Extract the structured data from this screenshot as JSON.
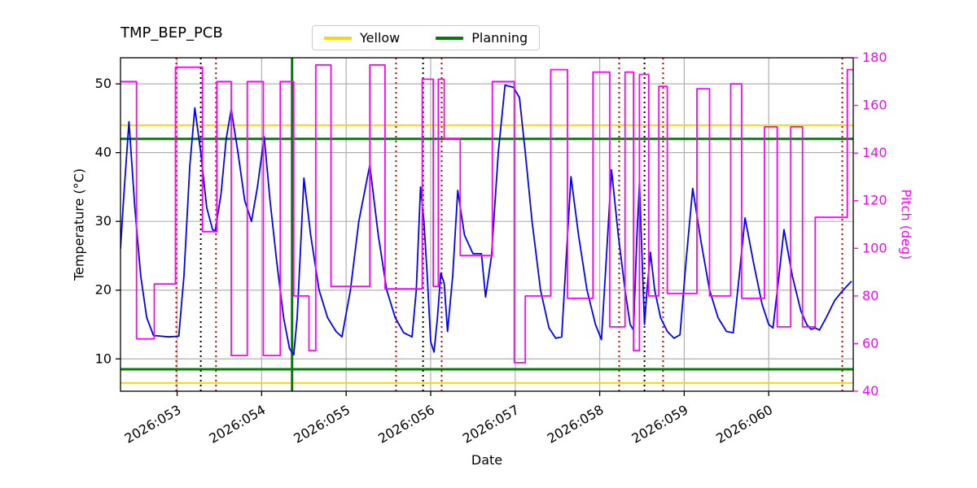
{
  "chart_data": {
    "type": "line",
    "title": "TMP_BEP_PCB",
    "xlabel": "Date",
    "grid": true,
    "x_axis": {
      "tick_labels": [
        "2026:053",
        "2026:054",
        "2026:055",
        "2026:056",
        "2026:057",
        "2026:058",
        "2026:059",
        "2026:060"
      ],
      "tick_values": [
        53,
        54,
        55,
        56,
        57,
        58,
        59,
        60
      ],
      "range": [
        52.33,
        61.0
      ]
    },
    "y_left": {
      "label": "Temperature (°C)",
      "ticks": [
        10,
        20,
        30,
        40,
        50
      ],
      "range": [
        5.3,
        53.8
      ],
      "color": "#000000"
    },
    "y_right": {
      "label": "Pitch (deg)",
      "ticks": [
        40,
        60,
        80,
        100,
        120,
        140,
        160,
        180
      ],
      "range": [
        40,
        180
      ],
      "color": "#ff00ff"
    },
    "legend": {
      "position": "top-center",
      "items": [
        {
          "label": "Yellow",
          "color": "#ffd700"
        },
        {
          "label": "Planning",
          "color": "#008000"
        }
      ]
    },
    "series": [
      {
        "name": "Temperature",
        "color": "#0000ff",
        "axis": "left",
        "line_width": 1.8,
        "x": [
          52.33,
          52.37,
          52.43,
          52.5,
          52.57,
          52.64,
          52.72,
          52.9,
          53.02,
          53.08,
          53.15,
          53.21,
          53.28,
          53.35,
          53.42,
          53.45,
          53.52,
          53.58,
          53.64,
          53.72,
          53.8,
          53.88,
          53.95,
          54.03,
          54.1,
          54.18,
          54.26,
          54.33,
          54.38,
          54.42,
          54.46,
          54.5,
          54.58,
          54.68,
          54.78,
          54.88,
          54.95,
          55.05,
          55.15,
          55.28,
          55.38,
          55.48,
          55.58,
          55.68,
          55.78,
          55.83,
          55.88,
          55.92,
          55.96,
          56.0,
          56.04,
          56.08,
          56.12,
          56.16,
          56.2,
          56.26,
          56.32,
          56.4,
          56.5,
          56.6,
          56.65,
          56.72,
          56.8,
          56.88,
          56.98,
          57.05,
          57.12,
          57.2,
          57.3,
          57.4,
          57.48,
          57.55,
          57.6,
          57.66,
          57.75,
          57.85,
          57.95,
          58.02,
          58.08,
          58.14,
          58.22,
          58.3,
          58.36,
          58.4,
          58.44,
          58.47,
          58.5,
          58.53,
          58.56,
          58.6,
          58.65,
          58.72,
          58.8,
          58.88,
          58.95,
          59.02,
          59.1,
          59.2,
          59.3,
          59.4,
          59.5,
          59.58,
          59.65,
          59.72,
          59.82,
          59.92,
          60.0,
          60.05,
          60.12,
          60.18,
          60.28,
          60.38,
          60.45,
          60.5,
          60.55,
          60.6,
          60.68,
          60.78,
          60.88,
          60.98
        ],
        "y": [
          26,
          34,
          44.5,
          32,
          22,
          16,
          13.4,
          13.2,
          13.3,
          22,
          38,
          46.5,
          40,
          32,
          28.8,
          28.6,
          34,
          42,
          46.3,
          40,
          33,
          30,
          35,
          42.3,
          33,
          24,
          16,
          11.5,
          10.6,
          16,
          26,
          36.3,
          28,
          20,
          16,
          14,
          13.2,
          20,
          30,
          38.2,
          28,
          20,
          16,
          13.8,
          13.2,
          20,
          35,
          30,
          22,
          12.5,
          11,
          16,
          22.5,
          21,
          14,
          22,
          34.5,
          28,
          25.3,
          25.3,
          19,
          25,
          40,
          49.8,
          49.5,
          48,
          40,
          30,
          20,
          14.5,
          13,
          13.2,
          24,
          36.5,
          28,
          20,
          15,
          12.8,
          25,
          37.5,
          28,
          20,
          15,
          14.2,
          28,
          35.7,
          25,
          15,
          20,
          25.5,
          20,
          16,
          14,
          13,
          13.5,
          24,
          34.8,
          27,
          20,
          16,
          14,
          13.8,
          22,
          30.5,
          24,
          18,
          15,
          14.5,
          22,
          28.8,
          22,
          17,
          15,
          14.3,
          14.5,
          14.2,
          16,
          18.5,
          20,
          21.3
        ]
      },
      {
        "name": "Pitch",
        "color": "#ff00ff",
        "axis": "right",
        "line_width": 1.8,
        "step": true,
        "steps": [
          [
            52.33,
            52.52,
            170
          ],
          [
            52.52,
            52.73,
            62
          ],
          [
            52.73,
            52.98,
            85
          ],
          [
            52.98,
            53.3,
            176
          ],
          [
            53.3,
            53.47,
            107
          ],
          [
            53.47,
            53.64,
            170
          ],
          [
            53.64,
            53.83,
            55
          ],
          [
            53.83,
            54.02,
            170
          ],
          [
            54.02,
            54.22,
            55
          ],
          [
            54.22,
            54.38,
            170
          ],
          [
            54.38,
            54.56,
            80
          ],
          [
            54.56,
            54.64,
            57
          ],
          [
            54.64,
            54.82,
            177
          ],
          [
            54.82,
            55.28,
            84
          ],
          [
            55.28,
            55.46,
            177
          ],
          [
            55.46,
            55.9,
            83
          ],
          [
            55.9,
            56.03,
            171
          ],
          [
            56.03,
            56.09,
            84
          ],
          [
            56.09,
            56.16,
            171
          ],
          [
            56.16,
            56.35,
            146
          ],
          [
            56.35,
            56.73,
            97
          ],
          [
            56.73,
            56.99,
            170
          ],
          [
            56.99,
            57.12,
            52
          ],
          [
            57.12,
            57.42,
            80
          ],
          [
            57.42,
            57.62,
            175
          ],
          [
            57.62,
            57.92,
            79
          ],
          [
            57.92,
            58.12,
            174
          ],
          [
            58.12,
            58.3,
            67
          ],
          [
            58.3,
            58.4,
            174
          ],
          [
            58.4,
            58.47,
            57
          ],
          [
            58.47,
            58.58,
            173
          ],
          [
            58.58,
            58.7,
            80
          ],
          [
            58.7,
            58.8,
            168
          ],
          [
            58.8,
            59.15,
            81
          ],
          [
            59.15,
            59.3,
            167
          ],
          [
            59.3,
            59.55,
            80
          ],
          [
            59.55,
            59.68,
            169
          ],
          [
            59.68,
            59.95,
            79
          ],
          [
            59.95,
            60.1,
            151
          ],
          [
            60.1,
            60.26,
            67
          ],
          [
            60.26,
            60.4,
            151
          ],
          [
            60.4,
            60.55,
            67
          ],
          [
            60.55,
            60.93,
            113
          ],
          [
            60.93,
            61.0,
            175
          ]
        ]
      }
    ],
    "reference_lines": {
      "horizontal": [
        {
          "y": 44.0,
          "color": "#ffd700",
          "width": 2,
          "name": "yellow-limit-high"
        },
        {
          "y": 42.0,
          "color": "#008000",
          "width": 3,
          "name": "planning-limit-high"
        },
        {
          "y": 8.5,
          "color": "#008000",
          "width": 3,
          "name": "planning-limit-low"
        },
        {
          "y": 6.5,
          "color": "#ffd700",
          "width": 2,
          "name": "yellow-limit-low"
        }
      ],
      "vertical": [
        {
          "x": 52.99,
          "color": "#cc0000",
          "style": "dotted",
          "width": 2,
          "name": "red-event-line"
        },
        {
          "x": 53.28,
          "color": "#000000",
          "style": "dotted",
          "width": 2,
          "name": "black-event-line"
        },
        {
          "x": 53.46,
          "color": "#cc0000",
          "style": "dotted",
          "width": 2,
          "name": "red-event-line"
        },
        {
          "x": 54.36,
          "color": "#008000",
          "style": "solid",
          "width": 3,
          "name": "green-event-line"
        },
        {
          "x": 55.59,
          "color": "#cc0000",
          "style": "dotted",
          "width": 2,
          "name": "red-event-line"
        },
        {
          "x": 55.91,
          "color": "#000000",
          "style": "dotted",
          "width": 2,
          "name": "black-event-line"
        },
        {
          "x": 56.13,
          "color": "#cc0000",
          "style": "dotted",
          "width": 2,
          "name": "red-event-line"
        },
        {
          "x": 58.23,
          "color": "#cc0000",
          "style": "dotted",
          "width": 2,
          "name": "red-event-line"
        },
        {
          "x": 58.53,
          "color": "#000000",
          "style": "dotted",
          "width": 2,
          "name": "black-event-line"
        },
        {
          "x": 58.75,
          "color": "#cc0000",
          "style": "dotted",
          "width": 2,
          "name": "red-event-line"
        },
        {
          "x": 60.87,
          "color": "#cc0000",
          "style": "dotted",
          "width": 2,
          "name": "red-event-line"
        }
      ]
    },
    "style": {
      "grid_color": "#b0b0b0",
      "spine_color": "#000000",
      "background": "#ffffff"
    }
  }
}
